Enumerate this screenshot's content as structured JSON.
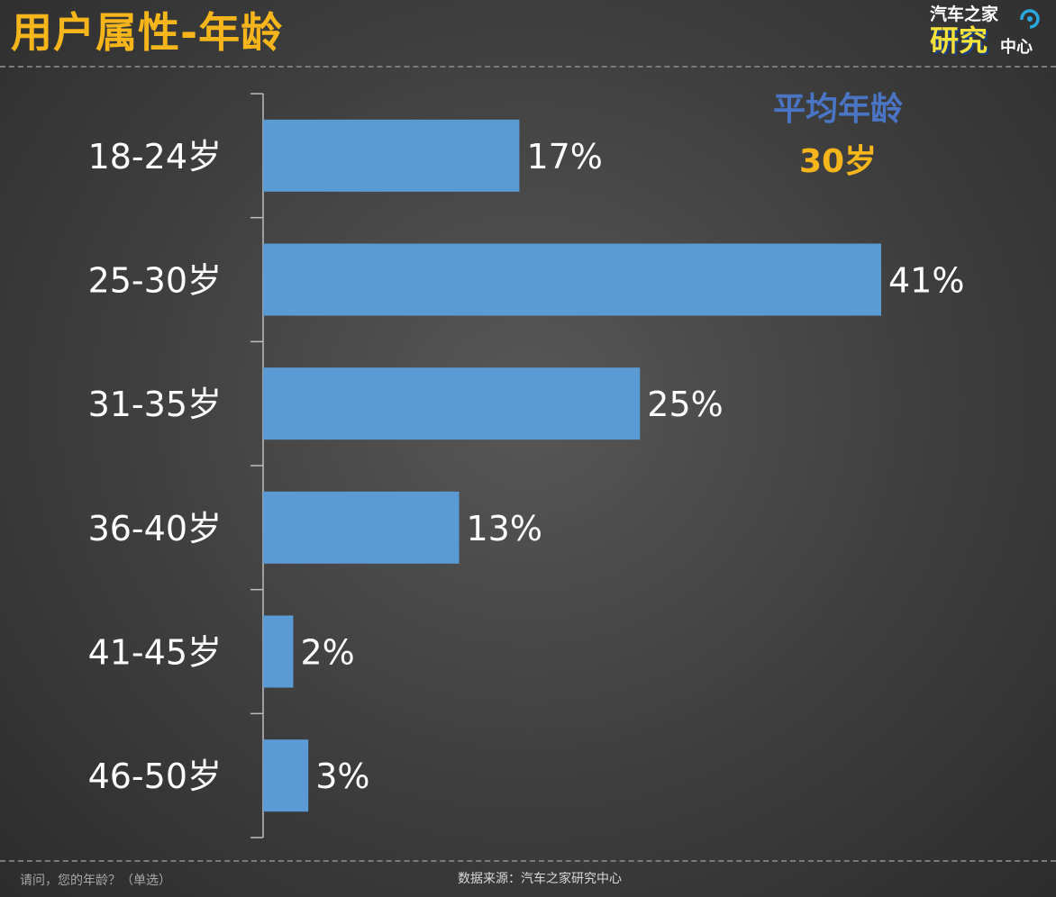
{
  "header": {
    "title": "用户属性-年龄"
  },
  "logo": {
    "top_text": "汽车之家",
    "big_text": "研究",
    "small_text": "中心"
  },
  "summary": {
    "label": "平均年龄",
    "value": "30岁"
  },
  "chart_data": {
    "type": "bar",
    "orientation": "horizontal",
    "title": "",
    "xlabel": "",
    "ylabel": "",
    "categories": [
      "18-24岁",
      "25-30岁",
      "31-35岁",
      "36-40岁",
      "41-45岁",
      "46-50岁"
    ],
    "values": [
      17,
      41,
      25,
      13,
      2,
      3
    ],
    "value_labels": [
      "17%",
      "41%",
      "25%",
      "13%",
      "2%",
      "3%"
    ],
    "xlim": [
      0,
      45
    ],
    "grid": false,
    "bar_color": "#5b9bd5"
  },
  "footer": {
    "question": "请问，您的年龄？（单选）",
    "source": "数据来源：汽车之家研究中心"
  },
  "colors": {
    "title": "#f5b51b",
    "summary_label": "#4a74c4",
    "summary_value": "#f5b51b",
    "bar": "#5b9bd5"
  }
}
